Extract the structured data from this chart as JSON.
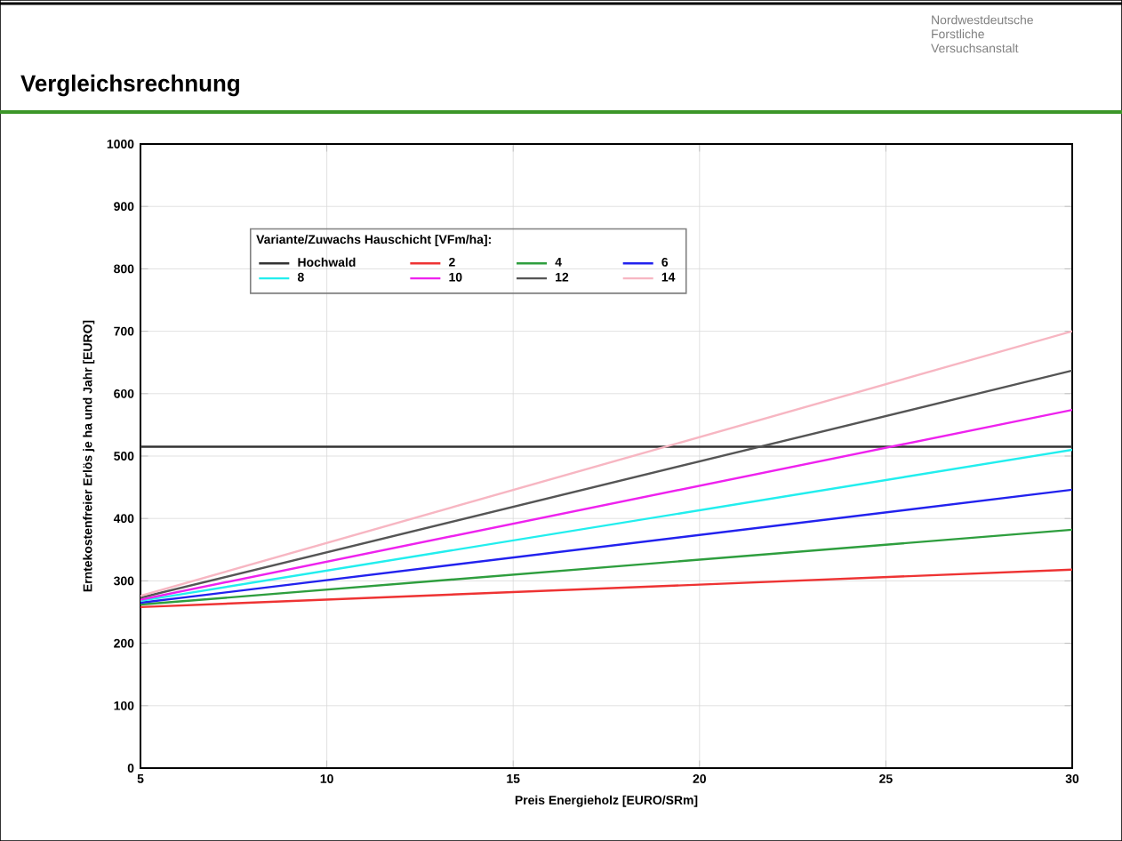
{
  "chart_data": {
    "type": "line",
    "title": "Vergleichsrechnung",
    "xlabel": "Preis Energieholz [EURO/SRm]",
    "ylabel": "Erntekostenfreier Erlös je ha und Jahr [EURO]",
    "legend_title": "Variante/Zuwachs Hauschicht [VFm/ha]:",
    "annotations": [
      "Nordwestdeutsche Forstliche Versuchsanstalt"
    ],
    "x": [
      5,
      30
    ],
    "series": [
      {
        "name": "Hochwald",
        "color": "#333333",
        "values": [
          515,
          515
        ]
      },
      {
        "name": "2",
        "color": "#ee3333",
        "values": [
          258,
          318
        ]
      },
      {
        "name": "4",
        "color": "#2e9e3e",
        "values": [
          262,
          382
        ]
      },
      {
        "name": "6",
        "color": "#2222ee",
        "values": [
          265,
          446
        ]
      },
      {
        "name": "8",
        "color": "#22eeee",
        "values": [
          268,
          510
        ]
      },
      {
        "name": "10",
        "color": "#ee22ee",
        "values": [
          270,
          574
        ]
      },
      {
        "name": "12",
        "color": "#555555",
        "values": [
          273,
          637
        ]
      },
      {
        "name": "14",
        "color": "#f7b6c2",
        "values": [
          276,
          700
        ]
      }
    ],
    "xlim": [
      5,
      30
    ],
    "ylim": [
      0,
      1000
    ],
    "xticks": [
      5,
      10,
      15,
      20,
      25,
      30
    ],
    "yticks": [
      0,
      100,
      200,
      300,
      400,
      500,
      600,
      700,
      800,
      900,
      1000
    ],
    "grid": true,
    "legend": "top",
    "line_style": "solid"
  }
}
